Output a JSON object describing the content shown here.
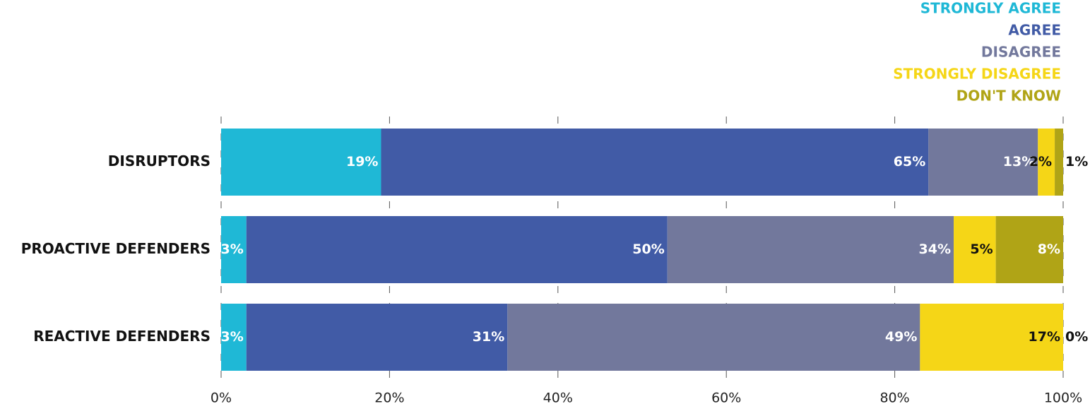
{
  "chart_data": {
    "type": "stacked-bar-horizontal",
    "categories": [
      "DISRUPTORS",
      "PROACTIVE DEFENDERS",
      "REACTIVE DEFENDERS"
    ],
    "series": [
      {
        "name": "STRONGLY AGREE",
        "color": "#1fb8d6",
        "values": [
          19,
          3,
          3
        ],
        "value_labels": [
          "19%",
          "3%",
          "3%"
        ]
      },
      {
        "name": "AGREE",
        "color": "#415ba6",
        "values": [
          65,
          50,
          31
        ],
        "value_labels": [
          "65%",
          "50%",
          "31%"
        ]
      },
      {
        "name": "DISAGREE",
        "color": "#72789c",
        "values": [
          13,
          34,
          49
        ],
        "value_labels": [
          "13%",
          "34%",
          "49%"
        ]
      },
      {
        "name": "STRONGLY DISAGREE",
        "color": "#f5d617",
        "values": [
          2,
          5,
          17
        ],
        "value_labels": [
          "2%",
          "5%",
          "17%"
        ]
      },
      {
        "name": "DON'T KNOW",
        "color": "#b0a416",
        "values": [
          1,
          8,
          0
        ],
        "value_labels": [
          "1%",
          "8%",
          "0%"
        ]
      }
    ],
    "xlim": [
      0,
      100
    ],
    "xticks": [
      {
        "value": 0,
        "label": "0%"
      },
      {
        "value": 20,
        "label": "20%"
      },
      {
        "value": 40,
        "label": "40%"
      },
      {
        "value": 60,
        "label": "60%"
      },
      {
        "value": 80,
        "label": "80%"
      },
      {
        "value": 100,
        "label": "100%"
      }
    ],
    "grid": true,
    "legend": "top-right"
  }
}
